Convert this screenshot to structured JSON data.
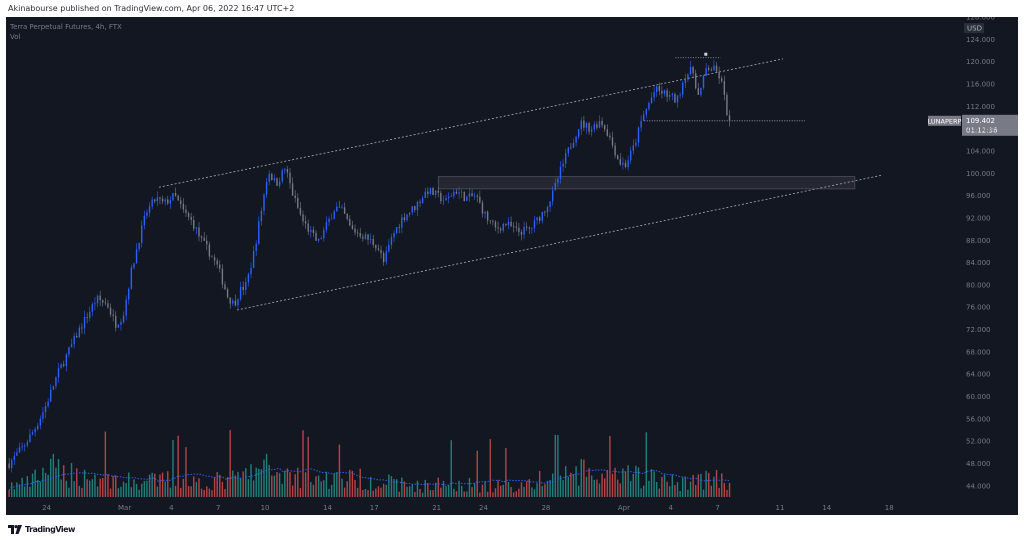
{
  "header": {
    "publisher_line": "Akinabourse published on TradingView.com, Apr 06, 2022 16:47 UTC+2"
  },
  "legend": {
    "symbol_line": "Terra Perpetual Futures, 4h, FTX",
    "volume_label": "Vol"
  },
  "footer": {
    "brand": "TradingView",
    "logo_icon": "tradingview-logo-icon"
  },
  "colors": {
    "background": "#131722",
    "up": "#2962ff",
    "down": "#787b86",
    "volume_up": "#26a69a",
    "volume_down": "#ef5350",
    "volume_ma": "#2962ff",
    "trendline": "#d1d4dc",
    "price_label_bg": "#787b86"
  },
  "chart_data": {
    "type": "candlestick",
    "currency": "USD",
    "y_tick_labels": [
      "128.000",
      "124.000",
      "120.000",
      "116.000",
      "112.000",
      "108.000",
      "104.000",
      "100.000",
      "96.000",
      "92.000",
      "88.000",
      "84.000",
      "80.000",
      "76.000",
      "72.000",
      "68.000",
      "64.000",
      "60.000",
      "56.000",
      "52.000",
      "48.000",
      "44.000"
    ],
    "ylim": [
      42,
      128
    ],
    "x_tick_labels": [
      {
        "label": "24",
        "day": 0
      },
      {
        "label": "Mar",
        "day": 5
      },
      {
        "label": "4",
        "day": 8
      },
      {
        "label": "7",
        "day": 11
      },
      {
        "label": "10",
        "day": 14
      },
      {
        "label": "14",
        "day": 18
      },
      {
        "label": "17",
        "day": 21
      },
      {
        "label": "21",
        "day": 25
      },
      {
        "label": "24",
        "day": 28
      },
      {
        "label": "28",
        "day": 32
      },
      {
        "label": "Apr",
        "day": 37
      },
      {
        "label": "4",
        "day": 40
      },
      {
        "label": "7",
        "day": 43
      },
      {
        "label": "11",
        "day": 47
      },
      {
        "label": "14",
        "day": 50
      },
      {
        "label": "18",
        "day": 54
      }
    ],
    "x_domain_days": [
      -2.6,
      58.6
    ],
    "last_price": {
      "symbol": "LUNAPERP",
      "price": "109.402",
      "countdown": "01:12:36",
      "value": 109.402
    },
    "price_anchors": [
      [
        -2.4,
        48
      ],
      [
        -1.5,
        51
      ],
      [
        -0.8,
        54
      ],
      [
        -0.1,
        58
      ],
      [
        0.7,
        64
      ],
      [
        1.4,
        68
      ],
      [
        2.1,
        72
      ],
      [
        2.7,
        75
      ],
      [
        3.2,
        77.5
      ],
      [
        3.9,
        76.5
      ],
      [
        4.4,
        73
      ],
      [
        4.9,
        74.5
      ],
      [
        5.4,
        82
      ],
      [
        5.9,
        88
      ],
      [
        6.4,
        93
      ],
      [
        7.0,
        95.5
      ],
      [
        7.5,
        94.5
      ],
      [
        8.2,
        96
      ],
      [
        8.8,
        93
      ],
      [
        9.4,
        91
      ],
      [
        9.9,
        88
      ],
      [
        10.4,
        86
      ],
      [
        11.0,
        83
      ],
      [
        11.6,
        78
      ],
      [
        12.0,
        76.5
      ],
      [
        12.4,
        79
      ],
      [
        12.8,
        80
      ],
      [
        13.3,
        86
      ],
      [
        13.8,
        94
      ],
      [
        14.2,
        100.5
      ],
      [
        14.7,
        98
      ],
      [
        15.3,
        101
      ],
      [
        15.8,
        96
      ],
      [
        16.4,
        91.5
      ],
      [
        17.0,
        89
      ],
      [
        17.4,
        87.5
      ],
      [
        18.0,
        91
      ],
      [
        18.5,
        94
      ],
      [
        19.0,
        93
      ],
      [
        19.5,
        90
      ],
      [
        20.2,
        89
      ],
      [
        21.2,
        87
      ],
      [
        21.6,
        84
      ],
      [
        22.2,
        89
      ],
      [
        22.8,
        92
      ],
      [
        23.6,
        94
      ],
      [
        24.4,
        97
      ],
      [
        25.0,
        96
      ],
      [
        25.6,
        95
      ],
      [
        26.2,
        97
      ],
      [
        26.9,
        95.5
      ],
      [
        27.5,
        96
      ],
      [
        28.2,
        92
      ],
      [
        28.8,
        90
      ],
      [
        29.4,
        91
      ],
      [
        30.2,
        89.5
      ],
      [
        31.0,
        90
      ],
      [
        31.8,
        93
      ],
      [
        32.4,
        96
      ],
      [
        33.0,
        101
      ],
      [
        33.5,
        104.5
      ],
      [
        34.2,
        109
      ],
      [
        34.9,
        108
      ],
      [
        35.5,
        109.5
      ],
      [
        36.0,
        107
      ],
      [
        36.7,
        102
      ],
      [
        37.1,
        101.5
      ],
      [
        37.6,
        104.5
      ],
      [
        38.2,
        110
      ],
      [
        39.0,
        115
      ],
      [
        39.8,
        114
      ],
      [
        40.4,
        113
      ],
      [
        40.9,
        117.5
      ],
      [
        41.4,
        118.5
      ],
      [
        41.8,
        113.5
      ],
      [
        42.3,
        119
      ],
      [
        42.8,
        118.5
      ],
      [
        43.2,
        117
      ],
      [
        43.6,
        111
      ],
      [
        43.9,
        109.4
      ]
    ],
    "volume_anchors": [
      [
        -2.4,
        3
      ],
      [
        -1,
        4
      ],
      [
        0,
        8
      ],
      [
        2,
        6
      ],
      [
        4,
        5
      ],
      [
        6,
        4
      ],
      [
        8,
        5
      ],
      [
        10,
        4
      ],
      [
        12,
        5
      ],
      [
        14,
        8
      ],
      [
        16,
        6
      ],
      [
        18,
        5
      ],
      [
        20,
        5
      ],
      [
        22,
        4
      ],
      [
        24,
        3
      ],
      [
        26,
        4
      ],
      [
        28,
        3
      ],
      [
        30,
        3
      ],
      [
        32,
        5
      ],
      [
        34,
        7
      ],
      [
        36,
        5
      ],
      [
        38,
        6
      ],
      [
        40,
        4
      ],
      [
        42,
        5
      ],
      [
        43.9,
        5
      ]
    ],
    "volume_axis_max": 34,
    "trendlines": [
      {
        "name": "channel-upper",
        "from": [
          7.2,
          97.5
        ],
        "to": [
          47.2,
          120.5
        ]
      },
      {
        "name": "channel-lower",
        "from": [
          12.2,
          75.5
        ],
        "to": [
          53.6,
          99.7
        ]
      },
      {
        "name": "support-zone",
        "from": [
          25.1,
          99.4
        ],
        "to": [
          51.8,
          98.5
        ],
        "zone_low": 97.2
      },
      {
        "name": "resistance-top",
        "from": [
          40.3,
          120.7
        ],
        "to": [
          43.2,
          120.7
        ]
      },
      {
        "name": "current-level",
        "from": [
          38.3,
          109.4
        ],
        "to": [
          48.6,
          109.4
        ]
      }
    ]
  }
}
